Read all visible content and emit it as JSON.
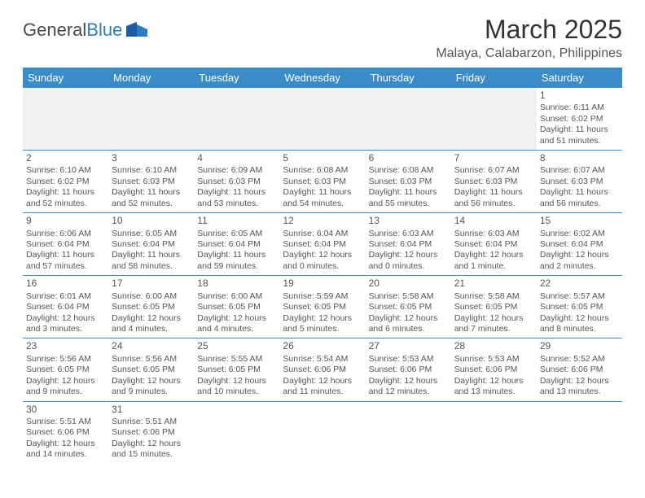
{
  "logo": {
    "textA": "General",
    "textB": "Blue"
  },
  "title": "March 2025",
  "location": "Malaya, Calabarzon, Philippines",
  "colors": {
    "headerBg": "#3b8bc9",
    "headerText": "#ffffff",
    "bodyText": "#555555",
    "rule": "#3b8bc9",
    "blankBg": "#f0f0f0",
    "logoGray": "#4a4a4a",
    "logoBlue": "#2f7cc0"
  },
  "weekdays": [
    "Sunday",
    "Monday",
    "Tuesday",
    "Wednesday",
    "Thursday",
    "Friday",
    "Saturday"
  ],
  "weeks": [
    [
      null,
      null,
      null,
      null,
      null,
      null,
      {
        "n": "1",
        "sr": "Sunrise: 6:11 AM",
        "ss": "Sunset: 6:02 PM",
        "dl": "Daylight: 11 hours and 51 minutes."
      }
    ],
    [
      {
        "n": "2",
        "sr": "Sunrise: 6:10 AM",
        "ss": "Sunset: 6:02 PM",
        "dl": "Daylight: 11 hours and 52 minutes."
      },
      {
        "n": "3",
        "sr": "Sunrise: 6:10 AM",
        "ss": "Sunset: 6:03 PM",
        "dl": "Daylight: 11 hours and 52 minutes."
      },
      {
        "n": "4",
        "sr": "Sunrise: 6:09 AM",
        "ss": "Sunset: 6:03 PM",
        "dl": "Daylight: 11 hours and 53 minutes."
      },
      {
        "n": "5",
        "sr": "Sunrise: 6:08 AM",
        "ss": "Sunset: 6:03 PM",
        "dl": "Daylight: 11 hours and 54 minutes."
      },
      {
        "n": "6",
        "sr": "Sunrise: 6:08 AM",
        "ss": "Sunset: 6:03 PM",
        "dl": "Daylight: 11 hours and 55 minutes."
      },
      {
        "n": "7",
        "sr": "Sunrise: 6:07 AM",
        "ss": "Sunset: 6:03 PM",
        "dl": "Daylight: 11 hours and 56 minutes."
      },
      {
        "n": "8",
        "sr": "Sunrise: 6:07 AM",
        "ss": "Sunset: 6:03 PM",
        "dl": "Daylight: 11 hours and 56 minutes."
      }
    ],
    [
      {
        "n": "9",
        "sr": "Sunrise: 6:06 AM",
        "ss": "Sunset: 6:04 PM",
        "dl": "Daylight: 11 hours and 57 minutes."
      },
      {
        "n": "10",
        "sr": "Sunrise: 6:05 AM",
        "ss": "Sunset: 6:04 PM",
        "dl": "Daylight: 11 hours and 58 minutes."
      },
      {
        "n": "11",
        "sr": "Sunrise: 6:05 AM",
        "ss": "Sunset: 6:04 PM",
        "dl": "Daylight: 11 hours and 59 minutes."
      },
      {
        "n": "12",
        "sr": "Sunrise: 6:04 AM",
        "ss": "Sunset: 6:04 PM",
        "dl": "Daylight: 12 hours and 0 minutes."
      },
      {
        "n": "13",
        "sr": "Sunrise: 6:03 AM",
        "ss": "Sunset: 6:04 PM",
        "dl": "Daylight: 12 hours and 0 minutes."
      },
      {
        "n": "14",
        "sr": "Sunrise: 6:03 AM",
        "ss": "Sunset: 6:04 PM",
        "dl": "Daylight: 12 hours and 1 minute."
      },
      {
        "n": "15",
        "sr": "Sunrise: 6:02 AM",
        "ss": "Sunset: 6:04 PM",
        "dl": "Daylight: 12 hours and 2 minutes."
      }
    ],
    [
      {
        "n": "16",
        "sr": "Sunrise: 6:01 AM",
        "ss": "Sunset: 6:04 PM",
        "dl": "Daylight: 12 hours and 3 minutes."
      },
      {
        "n": "17",
        "sr": "Sunrise: 6:00 AM",
        "ss": "Sunset: 6:05 PM",
        "dl": "Daylight: 12 hours and 4 minutes."
      },
      {
        "n": "18",
        "sr": "Sunrise: 6:00 AM",
        "ss": "Sunset: 6:05 PM",
        "dl": "Daylight: 12 hours and 4 minutes."
      },
      {
        "n": "19",
        "sr": "Sunrise: 5:59 AM",
        "ss": "Sunset: 6:05 PM",
        "dl": "Daylight: 12 hours and 5 minutes."
      },
      {
        "n": "20",
        "sr": "Sunrise: 5:58 AM",
        "ss": "Sunset: 6:05 PM",
        "dl": "Daylight: 12 hours and 6 minutes."
      },
      {
        "n": "21",
        "sr": "Sunrise: 5:58 AM",
        "ss": "Sunset: 6:05 PM",
        "dl": "Daylight: 12 hours and 7 minutes."
      },
      {
        "n": "22",
        "sr": "Sunrise: 5:57 AM",
        "ss": "Sunset: 6:05 PM",
        "dl": "Daylight: 12 hours and 8 minutes."
      }
    ],
    [
      {
        "n": "23",
        "sr": "Sunrise: 5:56 AM",
        "ss": "Sunset: 6:05 PM",
        "dl": "Daylight: 12 hours and 9 minutes."
      },
      {
        "n": "24",
        "sr": "Sunrise: 5:56 AM",
        "ss": "Sunset: 6:05 PM",
        "dl": "Daylight: 12 hours and 9 minutes."
      },
      {
        "n": "25",
        "sr": "Sunrise: 5:55 AM",
        "ss": "Sunset: 6:05 PM",
        "dl": "Daylight: 12 hours and 10 minutes."
      },
      {
        "n": "26",
        "sr": "Sunrise: 5:54 AM",
        "ss": "Sunset: 6:06 PM",
        "dl": "Daylight: 12 hours and 11 minutes."
      },
      {
        "n": "27",
        "sr": "Sunrise: 5:53 AM",
        "ss": "Sunset: 6:06 PM",
        "dl": "Daylight: 12 hours and 12 minutes."
      },
      {
        "n": "28",
        "sr": "Sunrise: 5:53 AM",
        "ss": "Sunset: 6:06 PM",
        "dl": "Daylight: 12 hours and 13 minutes."
      },
      {
        "n": "29",
        "sr": "Sunrise: 5:52 AM",
        "ss": "Sunset: 6:06 PM",
        "dl": "Daylight: 12 hours and 13 minutes."
      }
    ],
    [
      {
        "n": "30",
        "sr": "Sunrise: 5:51 AM",
        "ss": "Sunset: 6:06 PM",
        "dl": "Daylight: 12 hours and 14 minutes."
      },
      {
        "n": "31",
        "sr": "Sunrise: 5:51 AM",
        "ss": "Sunset: 6:06 PM",
        "dl": "Daylight: 12 hours and 15 minutes."
      },
      null,
      null,
      null,
      null,
      null
    ]
  ]
}
